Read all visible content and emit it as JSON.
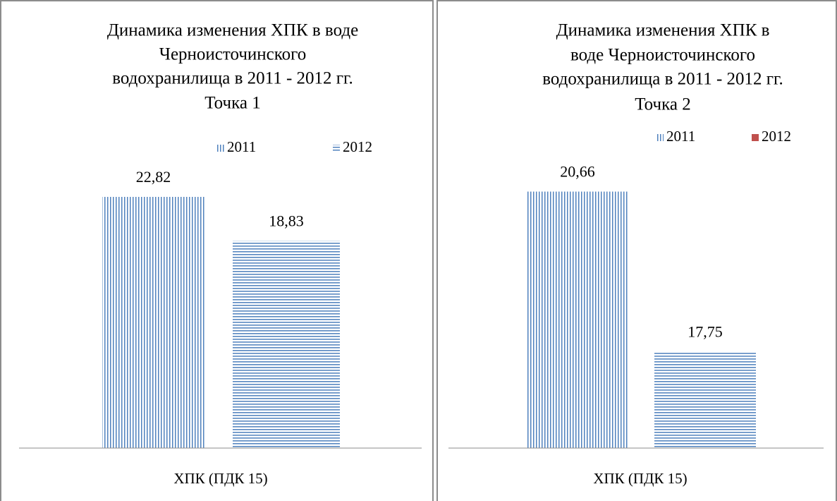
{
  "chart_data": [
    {
      "type": "bar",
      "title": [
        "Динамика изменения ХПК в воде",
        "Черноисточинского",
        "водохранилища в 2011 - 2012 гг.",
        "Точка 1"
      ],
      "categories": [
        "ХПК (ПДК 15)"
      ],
      "series": [
        {
          "name": "2011",
          "color": "#4f81bd",
          "pattern": "vertical",
          "values": [
            22.82
          ],
          "value_labels": [
            "22,82"
          ]
        },
        {
          "name": "2012",
          "color": "#4f81bd",
          "pattern": "horizontal",
          "values": [
            18.83
          ],
          "value_labels": [
            "18,83"
          ]
        }
      ],
      "ylim": [
        0,
        25
      ]
    },
    {
      "type": "bar",
      "title": [
        "Динамика изменения  ХПК в",
        "воде Черноисточинского",
        "водохранилища в 2011 - 2012 гг.",
        "Точка 2"
      ],
      "categories": [
        "ХПК (ПДК 15)"
      ],
      "series": [
        {
          "name": "2011",
          "color": "#4f81bd",
          "pattern": "vertical",
          "values": [
            20.66
          ],
          "value_labels": [
            "20,66"
          ]
        },
        {
          "name": "2012",
          "color": "#4f81bd",
          "legend_color": "#c0504d",
          "pattern": "horizontal",
          "values": [
            17.75
          ],
          "value_labels": [
            "17,75"
          ]
        }
      ],
      "ylim": [
        16,
        21
      ]
    }
  ]
}
